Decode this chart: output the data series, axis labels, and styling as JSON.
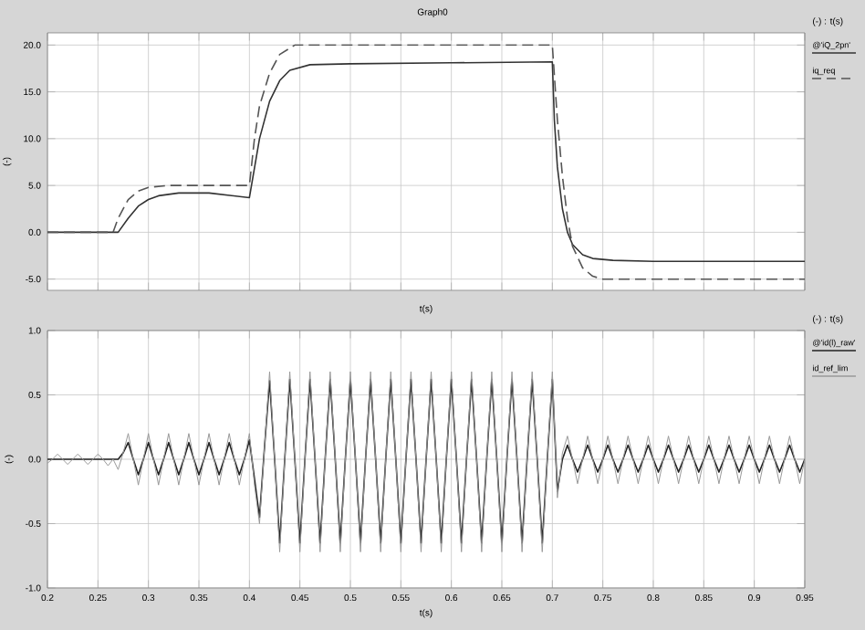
{
  "chart_data": [
    {
      "type": "line",
      "title": "Graph0",
      "xlabel": "t(s)",
      "ylabel": "(-)",
      "legend_title": "(-) : t(s)",
      "legend": "right",
      "grid": true,
      "tick_labels": "y",
      "xlim": [
        0.2,
        0.95
      ],
      "xticks": [
        0.2,
        0.25,
        0.3,
        0.35,
        0.4,
        0.45,
        0.5,
        0.55,
        0.6,
        0.65,
        0.7,
        0.75,
        0.8,
        0.85,
        0.9,
        0.95
      ],
      "ylim": [
        -6.2,
        21.3
      ],
      "yticks": [
        {
          "value": -5,
          "label": "-5.0"
        },
        {
          "value": 0,
          "label": "0.0"
        },
        {
          "value": 5,
          "label": "5.0"
        },
        {
          "value": 10,
          "label": "10.0"
        },
        {
          "value": 15,
          "label": "15.0"
        },
        {
          "value": 20,
          "label": "20.0"
        }
      ],
      "series": [
        {
          "name": "@'iQ_2pn'",
          "color": "#333333",
          "x": [
            0.2,
            0.27,
            0.28,
            0.29,
            0.3,
            0.31,
            0.33,
            0.36,
            0.4,
            0.41,
            0.42,
            0.43,
            0.44,
            0.46,
            0.5,
            0.6,
            0.7,
            0.702,
            0.705,
            0.71,
            0.715,
            0.72,
            0.73,
            0.74,
            0.76,
            0.8,
            0.95
          ],
          "values": [
            0,
            0,
            1.5,
            2.8,
            3.5,
            3.9,
            4.2,
            4.2,
            3.7,
            10,
            14,
            16.2,
            17.3,
            17.9,
            18,
            18.1,
            18.2,
            12,
            7,
            2.5,
            0,
            -1.3,
            -2.4,
            -2.8,
            -3,
            -3.1,
            -3.1
          ]
        },
        {
          "name": "iq_req",
          "color": "#555555",
          "line_style": "dashed",
          "x": [
            0.2,
            0.265,
            0.27,
            0.28,
            0.29,
            0.3,
            0.32,
            0.4,
            0.405,
            0.41,
            0.42,
            0.43,
            0.445,
            0.7,
            0.705,
            0.71,
            0.715,
            0.72,
            0.73,
            0.74,
            0.75,
            0.95
          ],
          "values": [
            0,
            0,
            1.5,
            3.5,
            4.4,
            4.8,
            5,
            5,
            10,
            13.5,
            17,
            19,
            20,
            20,
            12,
            6,
            1.5,
            -1.5,
            -3.8,
            -4.7,
            -5,
            -5
          ]
        }
      ]
    },
    {
      "type": "line",
      "xlabel": "t(s)",
      "ylabel": "(-)",
      "legend_title": "(-) : t(s)",
      "legend": "right",
      "grid": true,
      "xlim": [
        0.2,
        0.95
      ],
      "xticks": [
        0.2,
        0.25,
        0.3,
        0.35,
        0.4,
        0.45,
        0.5,
        0.55,
        0.6,
        0.65,
        0.7,
        0.75,
        0.8,
        0.85,
        0.9,
        0.95
      ],
      "ylim": [
        -1,
        1
      ],
      "yticks": [
        {
          "value": -1,
          "label": "-1.0"
        },
        {
          "value": -0.5,
          "label": "-0.5"
        },
        {
          "value": 0,
          "label": "0.0"
        },
        {
          "value": 0.5,
          "label": "0.5"
        },
        {
          "value": 1,
          "label": "1.0"
        }
      ],
      "x": [
        0.2,
        0.205,
        0.21,
        0.215,
        0.22,
        0.225,
        0.23,
        0.235,
        0.24,
        0.245,
        0.25,
        0.255,
        0.26,
        0.265,
        0.27,
        0.275,
        0.28,
        0.285,
        0.29,
        0.295,
        0.3,
        0.305,
        0.31,
        0.315,
        0.32,
        0.325,
        0.33,
        0.335,
        0.34,
        0.345,
        0.35,
        0.355,
        0.36,
        0.365,
        0.37,
        0.375,
        0.38,
        0.385,
        0.39,
        0.395,
        0.4,
        0.405,
        0.41,
        0.415,
        0.42,
        0.425,
        0.43,
        0.435,
        0.44,
        0.445,
        0.45,
        0.455,
        0.46,
        0.465,
        0.47,
        0.475,
        0.48,
        0.485,
        0.49,
        0.495,
        0.5,
        0.505,
        0.51,
        0.515,
        0.52,
        0.525,
        0.53,
        0.535,
        0.54,
        0.545,
        0.55,
        0.555,
        0.56,
        0.565,
        0.57,
        0.575,
        0.58,
        0.585,
        0.59,
        0.595,
        0.6,
        0.605,
        0.61,
        0.615,
        0.62,
        0.625,
        0.63,
        0.635,
        0.64,
        0.645,
        0.65,
        0.655,
        0.66,
        0.665,
        0.67,
        0.675,
        0.68,
        0.685,
        0.69,
        0.695,
        0.7,
        0.705,
        0.71,
        0.715,
        0.72,
        0.725,
        0.73,
        0.735,
        0.74,
        0.745,
        0.75,
        0.755,
        0.76,
        0.765,
        0.77,
        0.775,
        0.78,
        0.785,
        0.79,
        0.795,
        0.8,
        0.805,
        0.81,
        0.815,
        0.82,
        0.825,
        0.83,
        0.835,
        0.84,
        0.845,
        0.85,
        0.855,
        0.86,
        0.865,
        0.87,
        0.875,
        0.88,
        0.885,
        0.89,
        0.895,
        0.9,
        0.905,
        0.91,
        0.915,
        0.92,
        0.925,
        0.93,
        0.935,
        0.94,
        0.945,
        0.95
      ],
      "series": [
        {
          "name": "@'id(l)_raw'",
          "color": "#222222",
          "values": [
            0,
            0,
            0,
            0,
            0,
            0,
            0,
            0,
            0,
            0,
            0,
            0,
            0,
            0,
            0,
            0.05,
            0.13,
            0,
            -0.12,
            0,
            0.13,
            0,
            -0.12,
            0,
            0.13,
            0,
            -0.12,
            0,
            0.13,
            0,
            -0.12,
            0,
            0.13,
            0,
            -0.12,
            0,
            0.13,
            0,
            -0.12,
            0,
            0.15,
            -0.15,
            -0.45,
            0.1,
            0.61,
            0,
            -0.65,
            0,
            0.62,
            0,
            -0.65,
            0,
            0.62,
            0,
            -0.65,
            0,
            0.62,
            0,
            -0.65,
            0,
            0.62,
            0,
            -0.65,
            0,
            0.62,
            0,
            -0.65,
            0,
            0.62,
            0,
            -0.65,
            0,
            0.62,
            0,
            -0.65,
            0,
            0.62,
            0,
            -0.65,
            0,
            0.62,
            0,
            -0.65,
            0,
            0.62,
            0,
            -0.65,
            0,
            0.62,
            0,
            -0.65,
            0,
            0.62,
            0,
            -0.65,
            0,
            0.62,
            0,
            -0.65,
            0,
            0.62,
            -0.25,
            0,
            0.11,
            0,
            -0.1,
            0,
            0.11,
            0,
            -0.1,
            0,
            0.11,
            0,
            -0.1,
            0,
            0.11,
            0,
            -0.1,
            0,
            0.11,
            0,
            -0.1,
            0,
            0.11,
            0,
            -0.1,
            0,
            0.11,
            0,
            -0.1,
            0,
            0.11,
            0,
            -0.1,
            0,
            0.11,
            0,
            -0.1,
            0,
            0.11,
            0,
            -0.1,
            0,
            0.11,
            0,
            -0.1,
            0,
            0.11,
            0,
            -0.1,
            0
          ]
        },
        {
          "name": "id_ref_lim",
          "color": "#999999",
          "values": [
            -0.03,
            0,
            0.04,
            0,
            -0.04,
            0,
            0.04,
            0,
            -0.04,
            0,
            0.04,
            0,
            -0.05,
            0,
            -0.08,
            0.05,
            0.2,
            0,
            -0.2,
            0,
            0.2,
            0,
            -0.2,
            0,
            0.2,
            0,
            -0.2,
            0,
            0.2,
            0,
            -0.2,
            0,
            0.2,
            0,
            -0.2,
            0,
            0.2,
            0,
            -0.2,
            0,
            0.2,
            -0.2,
            -0.5,
            0.1,
            0.68,
            0,
            -0.72,
            0,
            0.68,
            0,
            -0.72,
            0,
            0.68,
            0,
            -0.72,
            0,
            0.68,
            0,
            -0.72,
            0,
            0.68,
            0,
            -0.72,
            0,
            0.68,
            0,
            -0.72,
            0,
            0.68,
            0,
            -0.72,
            0,
            0.68,
            0,
            -0.72,
            0,
            0.68,
            0,
            -0.72,
            0,
            0.68,
            0,
            -0.72,
            0,
            0.68,
            0,
            -0.72,
            0,
            0.68,
            0,
            -0.72,
            0,
            0.68,
            0,
            -0.72,
            0,
            0.68,
            0,
            -0.72,
            0,
            0.68,
            -0.3,
            0.05,
            0.18,
            0,
            -0.19,
            0,
            0.18,
            0,
            -0.19,
            0,
            0.18,
            0,
            -0.19,
            0,
            0.18,
            0,
            -0.19,
            0,
            0.18,
            0,
            -0.19,
            0,
            0.18,
            0,
            -0.19,
            0,
            0.18,
            0,
            -0.19,
            0,
            0.18,
            0,
            -0.19,
            0,
            0.18,
            0,
            -0.19,
            0,
            0.18,
            0,
            -0.19,
            0,
            0.18,
            0,
            -0.19,
            0,
            0.18,
            0,
            -0.19,
            0
          ]
        }
      ]
    }
  ]
}
